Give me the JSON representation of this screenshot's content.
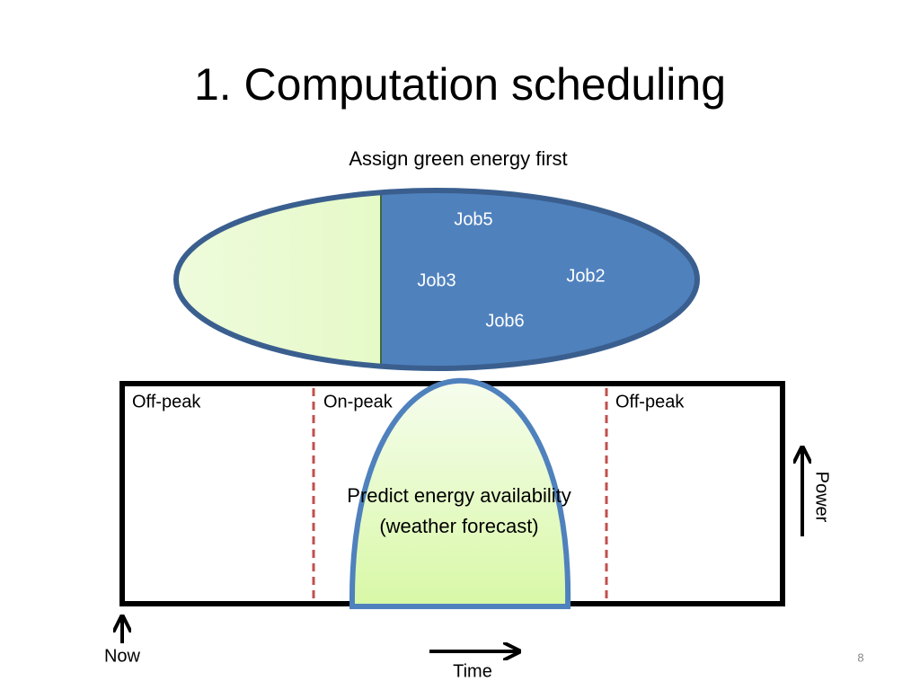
{
  "slide": {
    "title": "1. Computation scheduling",
    "page_number": "8"
  },
  "pool": {
    "label": "Assign green energy first",
    "jobs": [
      "Job5",
      "Job3",
      "Job2",
      "Job6"
    ]
  },
  "timeline": {
    "periods": [
      "Off-peak",
      "On-peak",
      "Off-peak"
    ],
    "curve_label": [
      "Predict energy availability",
      "(weather forecast)"
    ],
    "power_axis": "Power",
    "time_axis": "Time",
    "now": "Now"
  }
}
